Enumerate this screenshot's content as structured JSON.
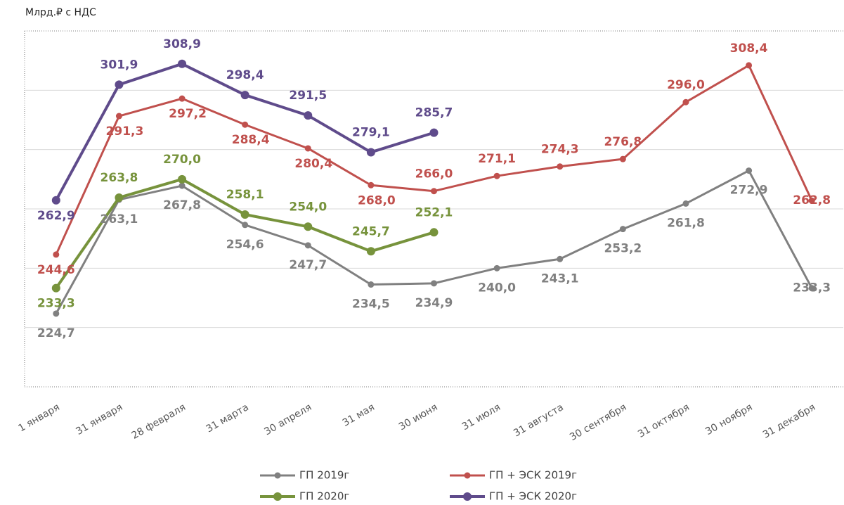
{
  "chart_data": {
    "type": "line",
    "y_axis_label": "Млрд.₽ с НДС",
    "categories": [
      "1 января",
      "31 января",
      "28 февраля",
      "31 марта",
      "30 апреля",
      "31 мая",
      "30 июня",
      "31 июля",
      "31 августа",
      "30 сентября",
      "31 октября",
      "30 ноября",
      "31 декабря"
    ],
    "ylim": [
      200,
      320
    ],
    "yticks": [
      200,
      220,
      240,
      260,
      280,
      300,
      320
    ],
    "grid": true,
    "series": [
      {
        "name": "ГП 2019г",
        "color": "#808080",
        "values": [
          224.7,
          263.1,
          267.8,
          254.6,
          247.7,
          234.5,
          234.9,
          240.0,
          243.1,
          253.2,
          261.8,
          272.9,
          233.3
        ],
        "value_labels": [
          "224,7",
          "263,1",
          "267,8",
          "254,6",
          "247,7",
          "234,5",
          "234,9",
          "240,0",
          "243,1",
          "253,2",
          "261,8",
          "272,9",
          "233,3"
        ]
      },
      {
        "name": "ГП + ЭСК 2019г",
        "color": "#c0504d",
        "values": [
          244.6,
          291.3,
          297.2,
          288.4,
          280.4,
          268.0,
          266.0,
          271.1,
          274.3,
          276.8,
          296.0,
          308.4,
          262.8
        ],
        "value_labels": [
          "244,6",
          "291,3",
          "297,2",
          "288,4",
          "280,4",
          "268,0",
          "266,0",
          "271,1",
          "274,3",
          "276,8",
          "296,0",
          "308,4",
          "262,8"
        ]
      },
      {
        "name": "ГП 2020г",
        "color": "#77933c",
        "values": [
          233.3,
          263.8,
          270.0,
          258.1,
          254.0,
          245.7,
          252.1,
          null,
          null,
          null,
          null,
          null,
          null
        ],
        "value_labels": [
          "233,3",
          "263,8",
          "270,0",
          "258,1",
          "254,0",
          "245,7",
          "252,1",
          null,
          null,
          null,
          null,
          null,
          null
        ]
      },
      {
        "name": "ГП + ЭСК 2020г",
        "color": "#5f4b8b",
        "values": [
          262.9,
          301.9,
          308.9,
          298.4,
          291.5,
          279.1,
          285.7,
          null,
          null,
          null,
          null,
          null,
          null
        ],
        "value_labels": [
          "262,9",
          "301,9",
          "308,9",
          "298,4",
          "291,5",
          "279,1",
          "285,7",
          null,
          null,
          null,
          null,
          null,
          null
        ]
      }
    ]
  }
}
